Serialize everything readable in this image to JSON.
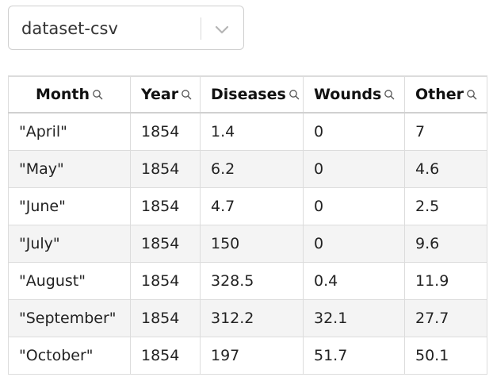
{
  "dataset_select": {
    "value": "dataset-csv",
    "icon": "chevron-down-icon"
  },
  "table": {
    "columns": [
      {
        "label": "Month",
        "icon": "search-icon"
      },
      {
        "label": "Year",
        "icon": "search-icon"
      },
      {
        "label": "Diseases",
        "icon": "search-icon"
      },
      {
        "label": "Wounds",
        "icon": "search-icon"
      },
      {
        "label": "Other",
        "icon": "search-icon"
      }
    ],
    "rows": [
      [
        "\"April\"",
        "1854",
        "1.4",
        "0",
        "7"
      ],
      [
        "\"May\"",
        "1854",
        "6.2",
        "0",
        "4.6"
      ],
      [
        "\"June\"",
        "1854",
        "4.7",
        "0",
        "2.5"
      ],
      [
        "\"July\"",
        "1854",
        "150",
        "0",
        "9.6"
      ],
      [
        "\"August\"",
        "1854",
        "328.5",
        "0.4",
        "11.9"
      ],
      [
        "\"September\"",
        "1854",
        "312.2",
        "32.1",
        "27.7"
      ],
      [
        "\"October\"",
        "1854",
        "197",
        "51.7",
        "50.1"
      ]
    ]
  }
}
